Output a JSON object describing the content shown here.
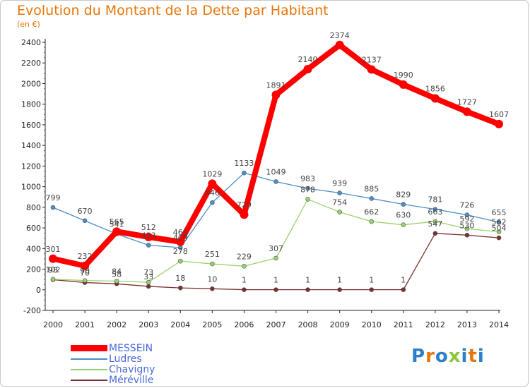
{
  "title": "Evolution du Montant de la Dette par Habitant",
  "unit": "(en €)",
  "logo": {
    "letters": [
      "P",
      "r",
      "o",
      "x",
      "i",
      "t",
      "i"
    ],
    "colors": [
      "#2c7fc9",
      "#e8760a",
      "#2c7fc9",
      "#8cc63f",
      "#2c7fc9",
      "#e8760a",
      "#2c7fc9"
    ]
  },
  "chart_data": {
    "type": "line",
    "x": [
      "2000",
      "2001",
      "2002",
      "2003",
      "2004",
      "2005",
      "2006",
      "2007",
      "2008",
      "2009",
      "2010",
      "2011",
      "2012",
      "2013",
      "2014"
    ],
    "ylim": [
      -200,
      2400
    ],
    "yticks": [
      "-200",
      "0",
      "200",
      "400",
      "600",
      "800",
      "1000",
      "1200",
      "1400",
      "1600",
      "1800",
      "2000",
      "2200",
      "2400"
    ],
    "grid": false,
    "legend_position": "bottom-left",
    "series": [
      {
        "name": "MESSEIN",
        "color": "#ff0000",
        "values": [
          301,
          232,
          565,
          512,
          465,
          1029,
          729,
          1891,
          2140,
          2374,
          2137,
          1990,
          1856,
          1727,
          1607
        ],
        "labels": [
          "301",
          "232",
          "565",
          "512",
          "465",
          "1029",
          "729",
          "1891",
          "2140",
          "2374",
          "2137",
          "1990",
          "1856",
          "1727",
          "1607"
        ]
      },
      {
        "name": "Ludres",
        "color": "#4a8fc9",
        "values": [
          799,
          670,
          541,
          433,
          409,
          846,
          1133,
          1049,
          983,
          939,
          885,
          829,
          781,
          726,
          655
        ],
        "labels": [
          "799",
          "670",
          "541",
          "433",
          "409",
          "846",
          "1133",
          "1049",
          "983",
          "939",
          "885",
          "829",
          "781",
          "726",
          "655"
        ]
      },
      {
        "name": "Chavigny",
        "color": "#9ad26a",
        "values": [
          102,
          90,
          84,
          73,
          278,
          251,
          229,
          307,
          878,
          754,
          662,
          630,
          663,
          592,
          562
        ],
        "labels": [
          "102",
          "90",
          "84",
          "73",
          "278",
          "251",
          "229",
          "307",
          "878",
          "754",
          "662",
          "630",
          "663",
          "592",
          "562"
        ]
      },
      {
        "name": "Méréville",
        "color": "#7a3030",
        "values": [
          98,
          70,
          58,
          33,
          18,
          10,
          1,
          1,
          1,
          1,
          1,
          1,
          547,
          530,
          504
        ],
        "labels": [
          "98",
          "70",
          "58",
          "33",
          "18",
          "10",
          "1",
          "1",
          "1",
          "1",
          "1",
          "1",
          "547",
          "530",
          "504"
        ]
      }
    ]
  },
  "legend": [
    {
      "name": "MESSEIN",
      "color": "#ff0000",
      "text_color": "#4a6ad8",
      "swatch_h": 9
    },
    {
      "name": "Ludres",
      "color": "#4a8fc9",
      "text_color": "#4a6ad8",
      "swatch_h": 2
    },
    {
      "name": "Chavigny",
      "color": "#9ad26a",
      "text_color": "#4a6ad8",
      "swatch_h": 2
    },
    {
      "name": "Méréville",
      "color": "#7a3030",
      "text_color": "#4a6ad8",
      "swatch_h": 2
    }
  ]
}
